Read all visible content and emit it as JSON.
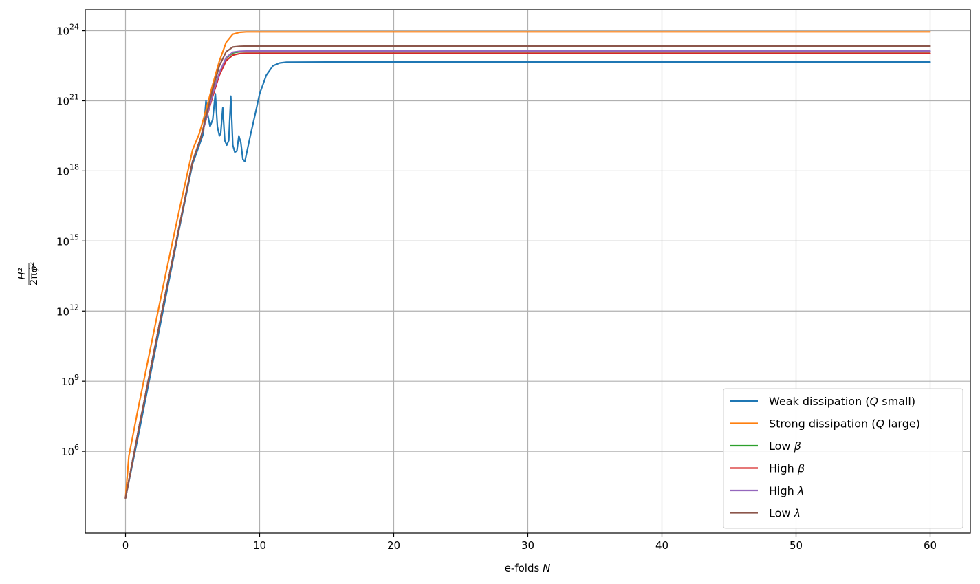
{
  "chart_data": {
    "type": "line",
    "xlabel": "e-folds N",
    "ylabel": "H²/(2πφ̇²)",
    "yscale": "log",
    "xlim": [
      -3,
      63
    ],
    "ylim_log10": [
      2.5,
      24.9
    ],
    "grid": true,
    "legend_position": "lower-right",
    "x_ticks": [
      0,
      10,
      20,
      30,
      40,
      50,
      60
    ],
    "y_ticks": [
      {
        "label": "10",
        "exp": "6",
        "log": 6
      },
      {
        "label": "10",
        "exp": "9",
        "log": 9
      },
      {
        "label": "10",
        "exp": "12",
        "log": 12
      },
      {
        "label": "10",
        "exp": "15",
        "log": 15
      },
      {
        "label": "10",
        "exp": "18",
        "log": 18
      },
      {
        "label": "10",
        "exp": "21",
        "log": 21
      },
      {
        "label": "10",
        "exp": "24",
        "log": 24
      }
    ],
    "series": [
      {
        "name": "Weak dissipation (Q small)",
        "color": "#1f77b4",
        "points": [
          [
            0,
            4.0
          ],
          [
            1,
            6.8
          ],
          [
            2,
            9.7
          ],
          [
            3,
            12.6
          ],
          [
            4,
            15.5
          ],
          [
            5,
            18.3
          ],
          [
            5.5,
            19.1
          ],
          [
            5.8,
            19.6
          ],
          [
            6.0,
            21.0
          ],
          [
            6.1,
            20.5
          ],
          [
            6.3,
            19.9
          ],
          [
            6.5,
            20.2
          ],
          [
            6.7,
            21.3
          ],
          [
            6.85,
            19.9
          ],
          [
            7.0,
            19.5
          ],
          [
            7.1,
            19.6
          ],
          [
            7.25,
            20.7
          ],
          [
            7.4,
            19.3
          ],
          [
            7.55,
            19.1
          ],
          [
            7.7,
            19.3
          ],
          [
            7.85,
            21.2
          ],
          [
            8.0,
            19.1
          ],
          [
            8.15,
            18.8
          ],
          [
            8.3,
            18.85
          ],
          [
            8.45,
            19.5
          ],
          [
            8.6,
            19.2
          ],
          [
            8.75,
            18.5
          ],
          [
            8.9,
            18.4
          ],
          [
            9.3,
            19.5
          ],
          [
            9.7,
            20.5
          ],
          [
            10,
            21.3
          ],
          [
            10.5,
            22.1
          ],
          [
            11,
            22.5
          ],
          [
            11.5,
            22.62
          ],
          [
            12,
            22.65
          ],
          [
            15,
            22.66
          ],
          [
            60,
            22.66
          ]
        ]
      },
      {
        "name": "Strong dissipation (Q large)",
        "color": "#ff7f0e",
        "points": [
          [
            0,
            4.0
          ],
          [
            0.25,
            5.8
          ],
          [
            1,
            8.0
          ],
          [
            2,
            10.8
          ],
          [
            3,
            13.6
          ],
          [
            4,
            16.3
          ],
          [
            5,
            18.9
          ],
          [
            5.5,
            19.6
          ],
          [
            6,
            20.6
          ],
          [
            6.5,
            21.7
          ],
          [
            7,
            22.7
          ],
          [
            7.5,
            23.5
          ],
          [
            8,
            23.85
          ],
          [
            8.5,
            23.93
          ],
          [
            9,
            23.95
          ],
          [
            10,
            23.95
          ],
          [
            60,
            23.95
          ]
        ]
      },
      {
        "name": "Low β",
        "color": "#2ca02c",
        "points": [
          [
            0,
            4.0
          ],
          [
            1,
            7.0
          ],
          [
            2,
            9.9
          ],
          [
            3,
            12.8
          ],
          [
            4,
            15.6
          ],
          [
            5,
            18.4
          ],
          [
            5.6,
            19.4
          ],
          [
            6,
            20.2
          ],
          [
            6.5,
            21.3
          ],
          [
            7,
            22.2
          ],
          [
            7.5,
            22.82
          ],
          [
            8,
            23.05
          ],
          [
            8.5,
            23.1
          ],
          [
            9,
            23.1
          ],
          [
            60,
            23.1
          ]
        ]
      },
      {
        "name": "High β",
        "color": "#d62728",
        "points": [
          [
            0,
            4.0
          ],
          [
            1,
            7.0
          ],
          [
            2,
            9.9
          ],
          [
            3,
            12.8
          ],
          [
            4,
            15.6
          ],
          [
            5,
            18.4
          ],
          [
            5.6,
            19.4
          ],
          [
            6,
            20.2
          ],
          [
            6.5,
            21.2
          ],
          [
            7,
            22.1
          ],
          [
            7.5,
            22.72
          ],
          [
            8,
            22.95
          ],
          [
            8.5,
            23.02
          ],
          [
            9,
            23.03
          ],
          [
            60,
            23.03
          ]
        ]
      },
      {
        "name": "High λ",
        "color": "#9467bd",
        "points": [
          [
            0,
            4.0
          ],
          [
            1,
            7.0
          ],
          [
            2,
            9.9
          ],
          [
            3,
            12.8
          ],
          [
            4,
            15.6
          ],
          [
            5,
            18.4
          ],
          [
            5.6,
            19.4
          ],
          [
            6,
            20.2
          ],
          [
            6.5,
            21.3
          ],
          [
            7,
            22.2
          ],
          [
            7.5,
            22.85
          ],
          [
            8,
            23.08
          ],
          [
            8.5,
            23.12
          ],
          [
            9,
            23.13
          ],
          [
            60,
            23.13
          ]
        ]
      },
      {
        "name": "Low λ",
        "color": "#8c564b",
        "points": [
          [
            0,
            4.0
          ],
          [
            1,
            7.0
          ],
          [
            2,
            9.9
          ],
          [
            3,
            12.8
          ],
          [
            4,
            15.6
          ],
          [
            5,
            18.4
          ],
          [
            5.6,
            19.4
          ],
          [
            6,
            20.3
          ],
          [
            6.5,
            21.5
          ],
          [
            7,
            22.5
          ],
          [
            7.5,
            23.1
          ],
          [
            8,
            23.3
          ],
          [
            8.5,
            23.33
          ],
          [
            9,
            23.34
          ],
          [
            60,
            23.34
          ]
        ]
      }
    ]
  }
}
